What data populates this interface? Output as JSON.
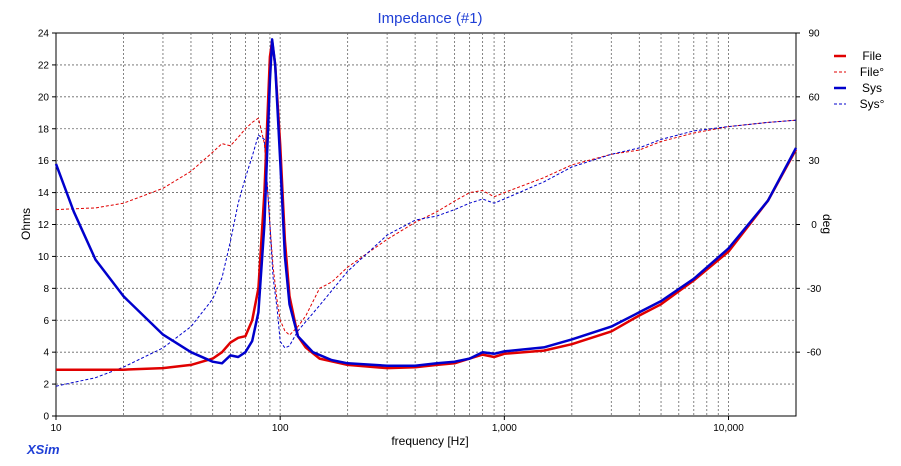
{
  "chart_data": {
    "type": "line",
    "title": "Impedance (#1)",
    "xlabel": "frequency [Hz]",
    "ylabel": "Ohms",
    "y2label": "deg",
    "x_scale": "log",
    "xlim": [
      10,
      20000
    ],
    "ylim": [
      0,
      24
    ],
    "y2lim": [
      -90,
      90
    ],
    "grid": true,
    "legend_position": "right",
    "x_tick_labels": [
      {
        "value": 10,
        "label": "10"
      },
      {
        "value": 100,
        "label": "100"
      },
      {
        "value": 1000,
        "label": "1,000"
      },
      {
        "value": 10000,
        "label": "10,000"
      }
    ],
    "y_ticks": [
      0,
      2,
      4,
      6,
      8,
      10,
      12,
      14,
      16,
      18,
      20,
      22,
      24
    ],
    "y2_ticks": [
      -60,
      -30,
      0,
      30,
      60,
      90
    ],
    "series": [
      {
        "name": "File",
        "axis": "left",
        "color": "#e00000",
        "style": "solid",
        "width": 2.5,
        "points": [
          [
            10,
            2.9
          ],
          [
            20,
            2.9
          ],
          [
            30,
            3.0
          ],
          [
            40,
            3.2
          ],
          [
            50,
            3.6
          ],
          [
            55,
            4.0
          ],
          [
            60,
            4.6
          ],
          [
            65,
            4.9
          ],
          [
            70,
            5.0
          ],
          [
            75,
            6.0
          ],
          [
            80,
            8.0
          ],
          [
            85,
            14.0
          ],
          [
            90,
            22.5
          ],
          [
            92,
            23.5
          ],
          [
            95,
            22.0
          ],
          [
            100,
            17.0
          ],
          [
            105,
            11.0
          ],
          [
            110,
            7.5
          ],
          [
            120,
            5.0
          ],
          [
            130,
            4.3
          ],
          [
            150,
            3.6
          ],
          [
            200,
            3.2
          ],
          [
            300,
            3.0
          ],
          [
            400,
            3.05
          ],
          [
            500,
            3.2
          ],
          [
            600,
            3.3
          ],
          [
            700,
            3.6
          ],
          [
            800,
            3.85
          ],
          [
            900,
            3.7
          ],
          [
            1000,
            3.9
          ],
          [
            1500,
            4.1
          ],
          [
            2000,
            4.5
          ],
          [
            3000,
            5.3
          ],
          [
            4000,
            6.3
          ],
          [
            5000,
            7.0
          ],
          [
            7000,
            8.5
          ],
          [
            10000,
            10.3
          ],
          [
            15000,
            13.5
          ],
          [
            20000,
            16.7
          ]
        ]
      },
      {
        "name": "File°",
        "axis": "right",
        "color": "#e00000",
        "style": "dashed",
        "width": 1,
        "points": [
          [
            10,
            7
          ],
          [
            15,
            7.8
          ],
          [
            20,
            10
          ],
          [
            30,
            17
          ],
          [
            40,
            25
          ],
          [
            50,
            34
          ],
          [
            55,
            38
          ],
          [
            60,
            37
          ],
          [
            65,
            41
          ],
          [
            70,
            45
          ],
          [
            75,
            48
          ],
          [
            80,
            50
          ],
          [
            85,
            38
          ],
          [
            90,
            0
          ],
          [
            93,
            -20
          ],
          [
            97,
            -36
          ],
          [
            100,
            -45
          ],
          [
            105,
            -50
          ],
          [
            110,
            -52
          ],
          [
            120,
            -48
          ],
          [
            130,
            -43
          ],
          [
            150,
            -30
          ],
          [
            170,
            -27
          ],
          [
            200,
            -20
          ],
          [
            300,
            -7
          ],
          [
            400,
            1
          ],
          [
            500,
            6
          ],
          [
            600,
            11
          ],
          [
            700,
            15
          ],
          [
            800,
            16
          ],
          [
            900,
            13
          ],
          [
            1000,
            15
          ],
          [
            1500,
            22
          ],
          [
            2000,
            28
          ],
          [
            3000,
            33
          ],
          [
            4000,
            35
          ],
          [
            5000,
            39
          ],
          [
            7000,
            43
          ],
          [
            10000,
            46
          ],
          [
            15000,
            48
          ],
          [
            20000,
            49
          ]
        ]
      },
      {
        "name": "Sys",
        "axis": "left",
        "color": "#0000cc",
        "style": "solid",
        "width": 2.5,
        "points": [
          [
            10,
            15.8
          ],
          [
            12,
            12.8
          ],
          [
            15,
            9.8
          ],
          [
            20,
            7.5
          ],
          [
            30,
            5.1
          ],
          [
            40,
            4.0
          ],
          [
            50,
            3.4
          ],
          [
            55,
            3.3
          ],
          [
            60,
            3.8
          ],
          [
            65,
            3.7
          ],
          [
            70,
            4.0
          ],
          [
            75,
            4.7
          ],
          [
            80,
            6.5
          ],
          [
            85,
            12.0
          ],
          [
            90,
            21.0
          ],
          [
            92,
            23.6
          ],
          [
            95,
            22.0
          ],
          [
            100,
            16.0
          ],
          [
            105,
            10.0
          ],
          [
            110,
            7.0
          ],
          [
            120,
            5.0
          ],
          [
            140,
            4.0
          ],
          [
            170,
            3.5
          ],
          [
            200,
            3.3
          ],
          [
            300,
            3.15
          ],
          [
            400,
            3.15
          ],
          [
            500,
            3.3
          ],
          [
            600,
            3.4
          ],
          [
            700,
            3.6
          ],
          [
            800,
            4.0
          ],
          [
            900,
            3.9
          ],
          [
            1000,
            4.05
          ],
          [
            1500,
            4.3
          ],
          [
            2000,
            4.8
          ],
          [
            3000,
            5.6
          ],
          [
            4000,
            6.5
          ],
          [
            5000,
            7.2
          ],
          [
            7000,
            8.6
          ],
          [
            10000,
            10.5
          ],
          [
            15000,
            13.5
          ],
          [
            20000,
            16.8
          ]
        ]
      },
      {
        "name": "Sys°",
        "axis": "right",
        "color": "#0000cc",
        "style": "dashed",
        "width": 1,
        "points": [
          [
            10,
            -76
          ],
          [
            15,
            -72
          ],
          [
            20,
            -67
          ],
          [
            30,
            -58
          ],
          [
            40,
            -48
          ],
          [
            50,
            -35
          ],
          [
            55,
            -25
          ],
          [
            60,
            -8
          ],
          [
            65,
            10
          ],
          [
            70,
            22
          ],
          [
            75,
            32
          ],
          [
            80,
            42
          ],
          [
            85,
            40
          ],
          [
            90,
            0
          ],
          [
            93,
            -25
          ],
          [
            97,
            -40
          ],
          [
            100,
            -55
          ],
          [
            105,
            -58
          ],
          [
            110,
            -57
          ],
          [
            120,
            -50
          ],
          [
            150,
            -38
          ],
          [
            200,
            -22
          ],
          [
            300,
            -5
          ],
          [
            400,
            2
          ],
          [
            500,
            4
          ],
          [
            600,
            7
          ],
          [
            700,
            10
          ],
          [
            800,
            12
          ],
          [
            900,
            10
          ],
          [
            1000,
            12
          ],
          [
            1500,
            20
          ],
          [
            2000,
            27
          ],
          [
            3000,
            33
          ],
          [
            4000,
            36
          ],
          [
            5000,
            40
          ],
          [
            7000,
            44
          ],
          [
            10000,
            46
          ],
          [
            15000,
            48
          ],
          [
            20000,
            49
          ]
        ]
      }
    ]
  },
  "branding": {
    "label": "XSim"
  }
}
